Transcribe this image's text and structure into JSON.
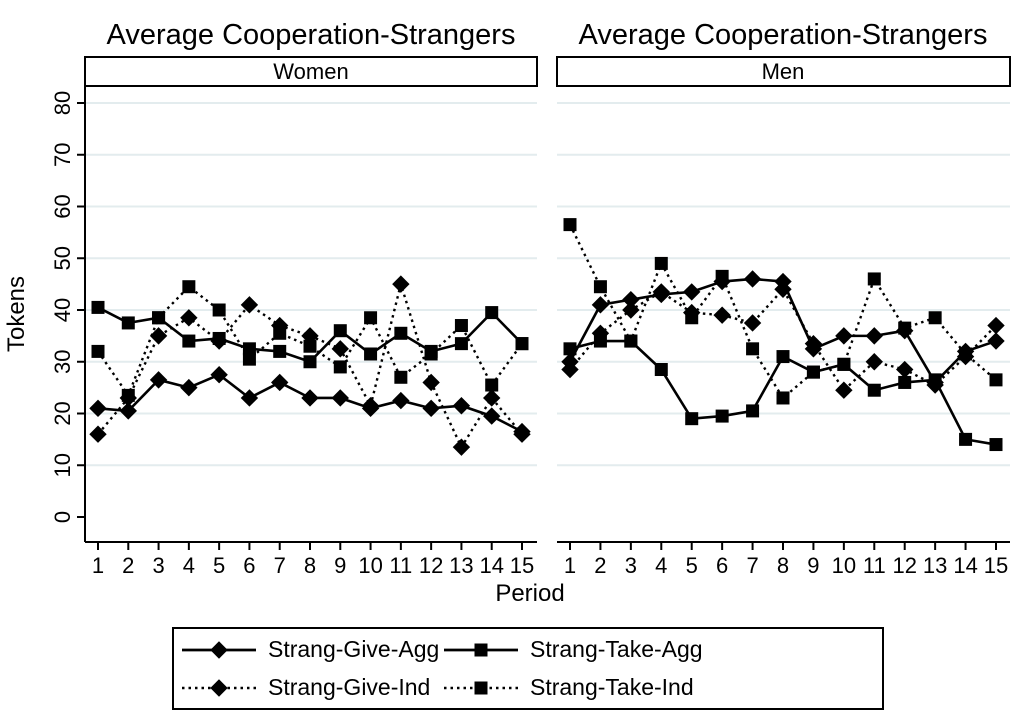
{
  "figure": {
    "title_left": "Average Cooperation-Strangers",
    "title_right": "Average Cooperation-Strangers",
    "ylabel": "Tokens",
    "xlabel": "Period",
    "grid_color": "#e3ecee",
    "line_color": "#000000",
    "background": "#ffffff"
  },
  "chart_data": [
    {
      "type": "line",
      "panel": "Women",
      "x": [
        1,
        2,
        3,
        4,
        5,
        6,
        7,
        8,
        9,
        10,
        11,
        12,
        13,
        14,
        15
      ],
      "yticks": [
        0,
        10,
        20,
        30,
        40,
        50,
        60,
        70,
        80
      ],
      "ylim": [
        0,
        80
      ],
      "grid": true,
      "legend_position": "bottom",
      "series": [
        {
          "name": "Strang-Give-Agg",
          "marker": "diamond",
          "line": "solid",
          "values": [
            21,
            20.5,
            26.5,
            25,
            27.5,
            23,
            26,
            23,
            23,
            21,
            22.5,
            21,
            21.5,
            19.5,
            16.5
          ]
        },
        {
          "name": "Strang-Take-Agg",
          "marker": "square",
          "line": "solid",
          "values": [
            40.5,
            37.5,
            38.5,
            34,
            34.5,
            32.5,
            32,
            30,
            36,
            31.5,
            35.5,
            32,
            33.5,
            39.5,
            33.5
          ]
        },
        {
          "name": "Strang-Give-Ind",
          "marker": "diamond",
          "line": "dotted",
          "values": [
            16,
            23,
            35,
            38.5,
            34,
            41,
            37,
            35,
            32.5,
            21.5,
            45,
            26,
            13.5,
            23,
            16
          ]
        },
        {
          "name": "Strang-Take-Ind",
          "marker": "square",
          "line": "dotted",
          "values": [
            32,
            23.5,
            38.5,
            44.5,
            40,
            30.5,
            35.5,
            33,
            29,
            38.5,
            27,
            31.5,
            37,
            25.5,
            33.5
          ]
        }
      ]
    },
    {
      "type": "line",
      "panel": "Men",
      "x": [
        1,
        2,
        3,
        4,
        5,
        6,
        7,
        8,
        9,
        10,
        11,
        12,
        13,
        14,
        15
      ],
      "yticks": [
        0,
        10,
        20,
        30,
        40,
        50,
        60,
        70,
        80
      ],
      "ylim": [
        0,
        80
      ],
      "grid": true,
      "legend_position": "bottom",
      "series": [
        {
          "name": "Strang-Give-Agg",
          "marker": "diamond",
          "line": "solid",
          "values": [
            30,
            41,
            42,
            43,
            43.5,
            45.5,
            46,
            45.5,
            32.5,
            35,
            35,
            36,
            26,
            32,
            34
          ]
        },
        {
          "name": "Strang-Take-Agg",
          "marker": "square",
          "line": "solid",
          "values": [
            32.5,
            34,
            34,
            28.5,
            19,
            19.5,
            20.5,
            31,
            28,
            29.5,
            24.5,
            26,
            26.5,
            15,
            14
          ]
        },
        {
          "name": "Strang-Give-Ind",
          "marker": "diamond",
          "line": "dotted",
          "values": [
            28.5,
            35.5,
            40,
            43.5,
            39.5,
            39,
            37.5,
            44,
            33.5,
            24.5,
            30,
            28.5,
            25.5,
            31,
            37
          ]
        },
        {
          "name": "Strang-Take-Ind",
          "marker": "square",
          "line": "dotted",
          "values": [
            56.5,
            44.5,
            34,
            49,
            38.5,
            46.5,
            32.5,
            23,
            28,
            29.5,
            46,
            36.5,
            38.5,
            31.5,
            26.5
          ]
        }
      ]
    }
  ]
}
